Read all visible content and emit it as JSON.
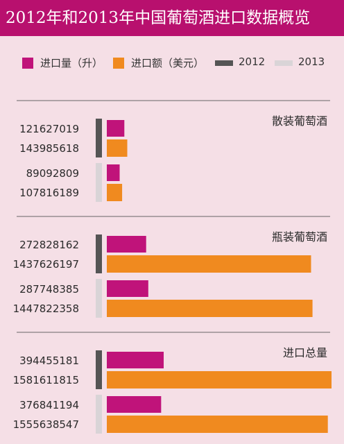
{
  "title": "2012年和2013年中国葡萄酒进口数据概览",
  "legend": [
    {
      "label": "进口量（升）",
      "color": "#c0137a",
      "kind": "square"
    },
    {
      "label": "进口额（美元）",
      "color": "#f08a1f",
      "kind": "square"
    },
    {
      "label": "2012",
      "color": "#555555",
      "kind": "bar"
    },
    {
      "label": "2013",
      "color": "#d9d4d7",
      "kind": "bar"
    }
  ],
  "colors": {
    "volume": "#c0137a",
    "value": "#f08a1f",
    "year2012": "#555555",
    "year2013": "#d9d4d7"
  },
  "chart_data": {
    "type": "bar",
    "orientation": "horizontal",
    "groups": [
      {
        "category": "散装葡萄酒",
        "years": [
          {
            "year": "2012",
            "volume": 121627019,
            "value": 143985618
          },
          {
            "year": "2013",
            "volume": 89092809,
            "value": 107816189
          }
        ]
      },
      {
        "category": "瓶装葡萄酒",
        "years": [
          {
            "year": "2012",
            "volume": 272828162,
            "value": 1437626197
          },
          {
            "year": "2013",
            "volume": 287748385,
            "value": 1447822358
          }
        ]
      },
      {
        "category": "进口总量",
        "years": [
          {
            "year": "2012",
            "volume": 394455181,
            "value": 1581611815
          },
          {
            "year": "2013",
            "volume": 376841194,
            "value": 1555638547
          }
        ]
      }
    ],
    "scales": {
      "volume_max": 394455181,
      "value_max": 1581611815
    },
    "grid": false,
    "legend_position": "top"
  }
}
